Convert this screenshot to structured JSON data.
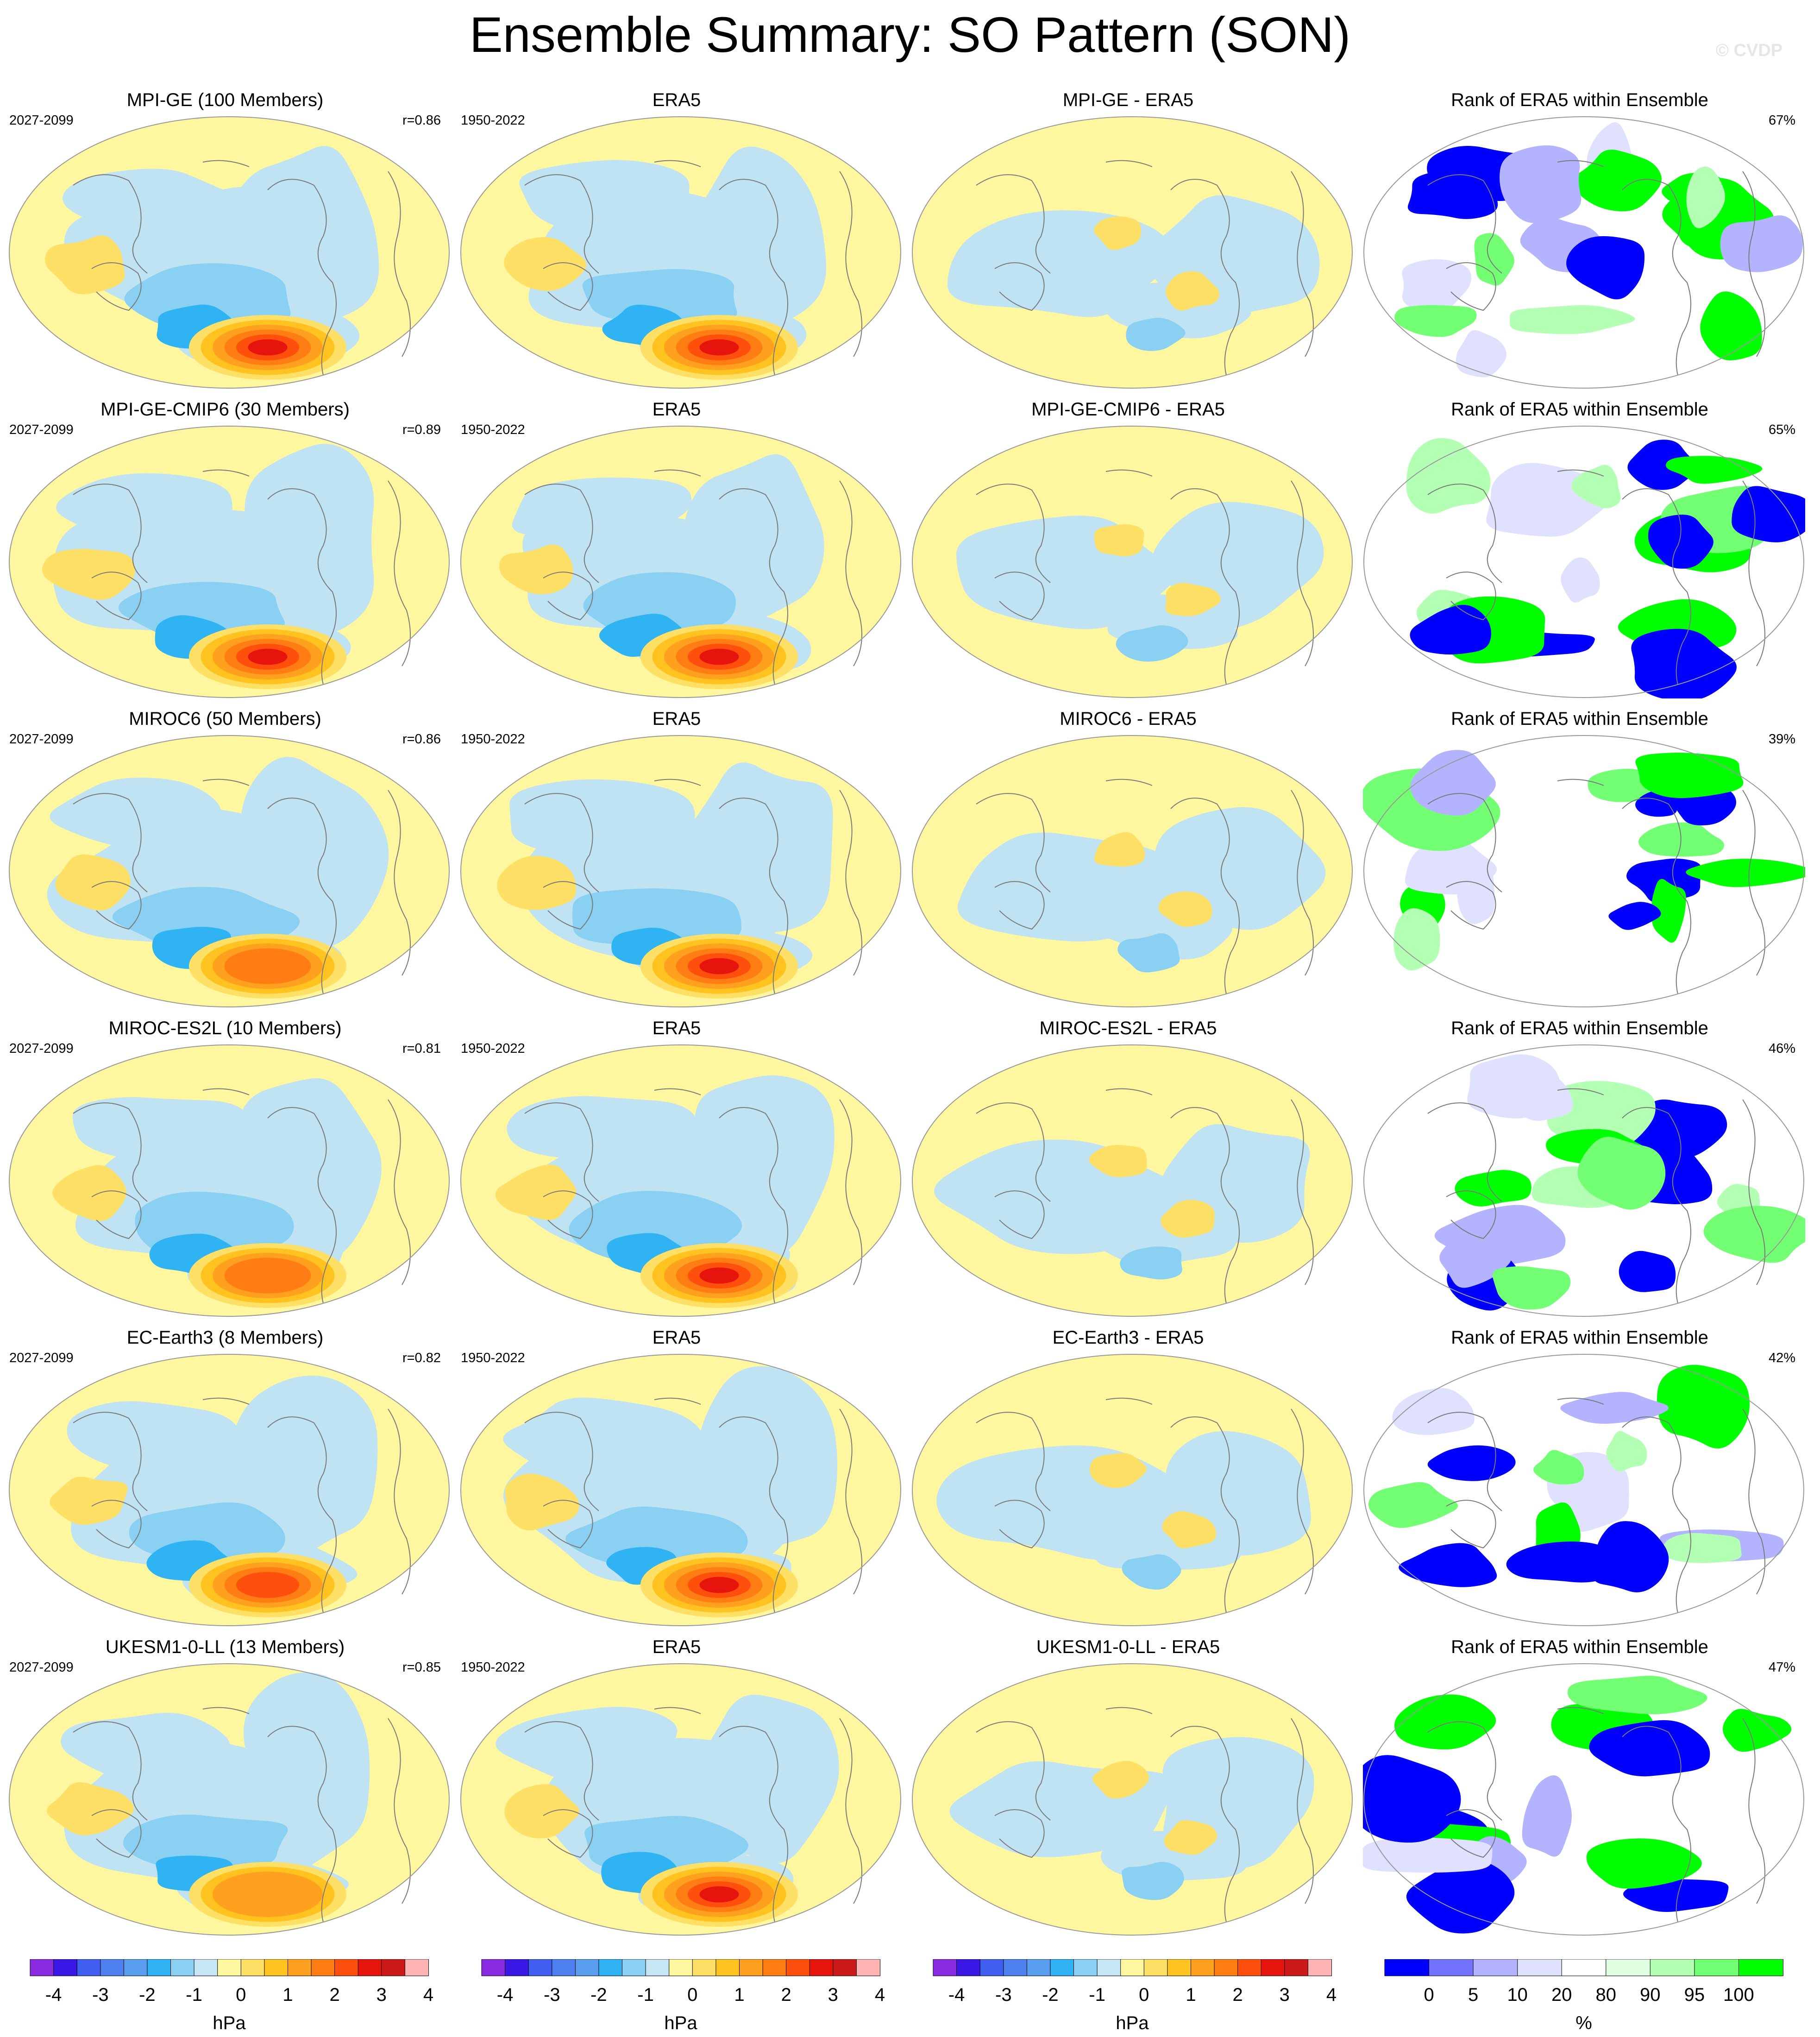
{
  "title": "Ensemble Summary: SO Pattern (SON)",
  "watermark": "© CVDP",
  "rows": [
    {
      "model_title": "MPI-GE (100 Members)",
      "model_period": "2027-2099",
      "corr": "r=0.86",
      "obs_title": "ERA5",
      "obs_period": "1950-2022",
      "diff_title": "MPI-GE - ERA5",
      "rank_title": "Rank of ERA5 within Ensemble",
      "rank_pct": "67%"
    },
    {
      "model_title": "MPI-GE-CMIP6 (30 Members)",
      "model_period": "2027-2099",
      "corr": "r=0.89",
      "obs_title": "ERA5",
      "obs_period": "1950-2022",
      "diff_title": "MPI-GE-CMIP6 - ERA5",
      "rank_title": "Rank of ERA5 within Ensemble",
      "rank_pct": "65%"
    },
    {
      "model_title": "MIROC6 (50 Members)",
      "model_period": "2027-2099",
      "corr": "r=0.86",
      "obs_title": "ERA5",
      "obs_period": "1950-2022",
      "diff_title": "MIROC6 - ERA5",
      "rank_title": "Rank of ERA5 within Ensemble",
      "rank_pct": "39%"
    },
    {
      "model_title": "MIROC-ES2L (10 Members)",
      "model_period": "2027-2099",
      "corr": "r=0.81",
      "obs_title": "ERA5",
      "obs_period": "1950-2022",
      "diff_title": "MIROC-ES2L - ERA5",
      "rank_title": "Rank of ERA5 within Ensemble",
      "rank_pct": "46%"
    },
    {
      "model_title": "EC-Earth3 (8 Members)",
      "model_period": "2027-2099",
      "corr": "r=0.82",
      "obs_title": "ERA5",
      "obs_period": "1950-2022",
      "diff_title": "EC-Earth3 - ERA5",
      "rank_title": "Rank of ERA5 within Ensemble",
      "rank_pct": "42%"
    },
    {
      "model_title": "UKESM1-0-LL (13 Members)",
      "model_period": "2027-2099",
      "corr": "r=0.85",
      "obs_title": "ERA5",
      "obs_period": "1950-2022",
      "diff_title": "UKESM1-0-LL - ERA5",
      "rank_title": "Rank of ERA5 within Ensemble",
      "rank_pct": "47%"
    }
  ],
  "colorbars": {
    "hpa": {
      "unit": "hPa",
      "colors": [
        "#8a2be2",
        "#3b18e6",
        "#3f5ef0",
        "#4d80ee",
        "#5b9def",
        "#2fb3f3",
        "#8ad0f2",
        "#c6e6f5",
        "#fff8a0",
        "#ffe066",
        "#ffc21f",
        "#ffa01f",
        "#ff7d12",
        "#ff4f0d",
        "#e6140d",
        "#cc1a1a",
        "#ffb3b3"
      ],
      "tick_labels": [
        "-4",
        "-3",
        "-2",
        "-1",
        "0",
        "1",
        "2",
        "3",
        "4"
      ]
    },
    "rank": {
      "unit": "%",
      "colors": [
        "#0000ff",
        "#7373ff",
        "#b3b3ff",
        "#e0e0ff",
        "#ffffff",
        "#e0ffe0",
        "#b3ffb3",
        "#73ff73",
        "#00ff00"
      ],
      "tick_labels": [
        "0",
        "5",
        "10",
        "20",
        "80",
        "90",
        "95",
        "100"
      ]
    }
  },
  "legend_colors": {
    "ocean_neg": "#bfe3f2",
    "land_pos": "#fff7a0",
    "rank_high": "#00ff00",
    "rank_low": "#0000ff"
  }
}
